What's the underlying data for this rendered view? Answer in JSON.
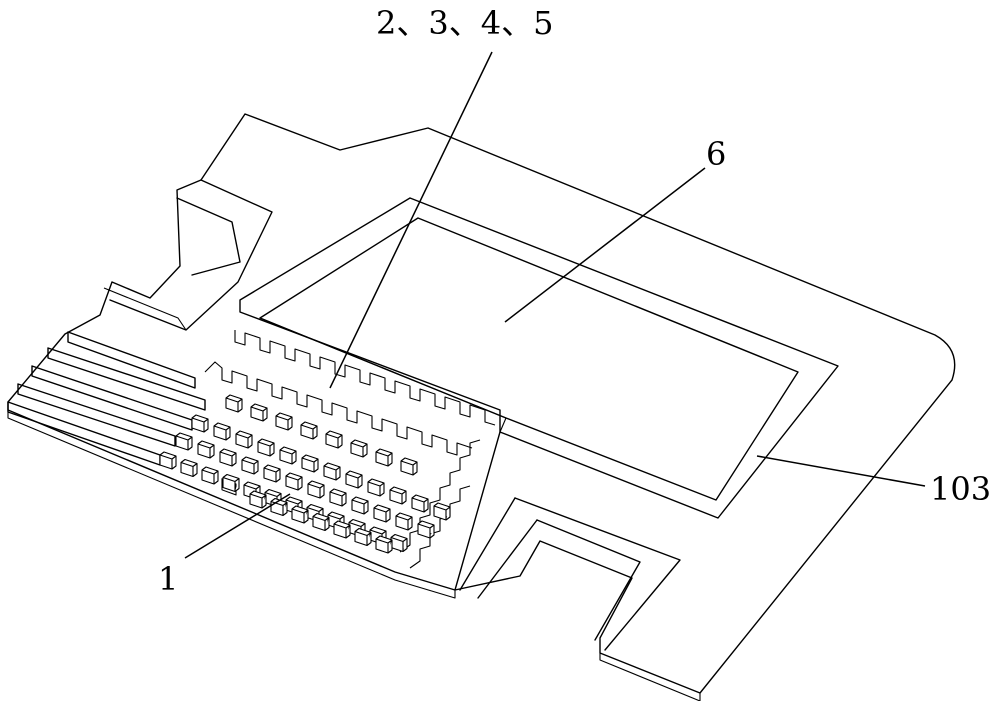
{
  "labels": {
    "top_callout": "2、3、4、5",
    "window_callout": "6",
    "frame_callout": "103",
    "strip_callout": "1"
  },
  "colors": {
    "line": "#000000",
    "background": "#ffffff"
  }
}
